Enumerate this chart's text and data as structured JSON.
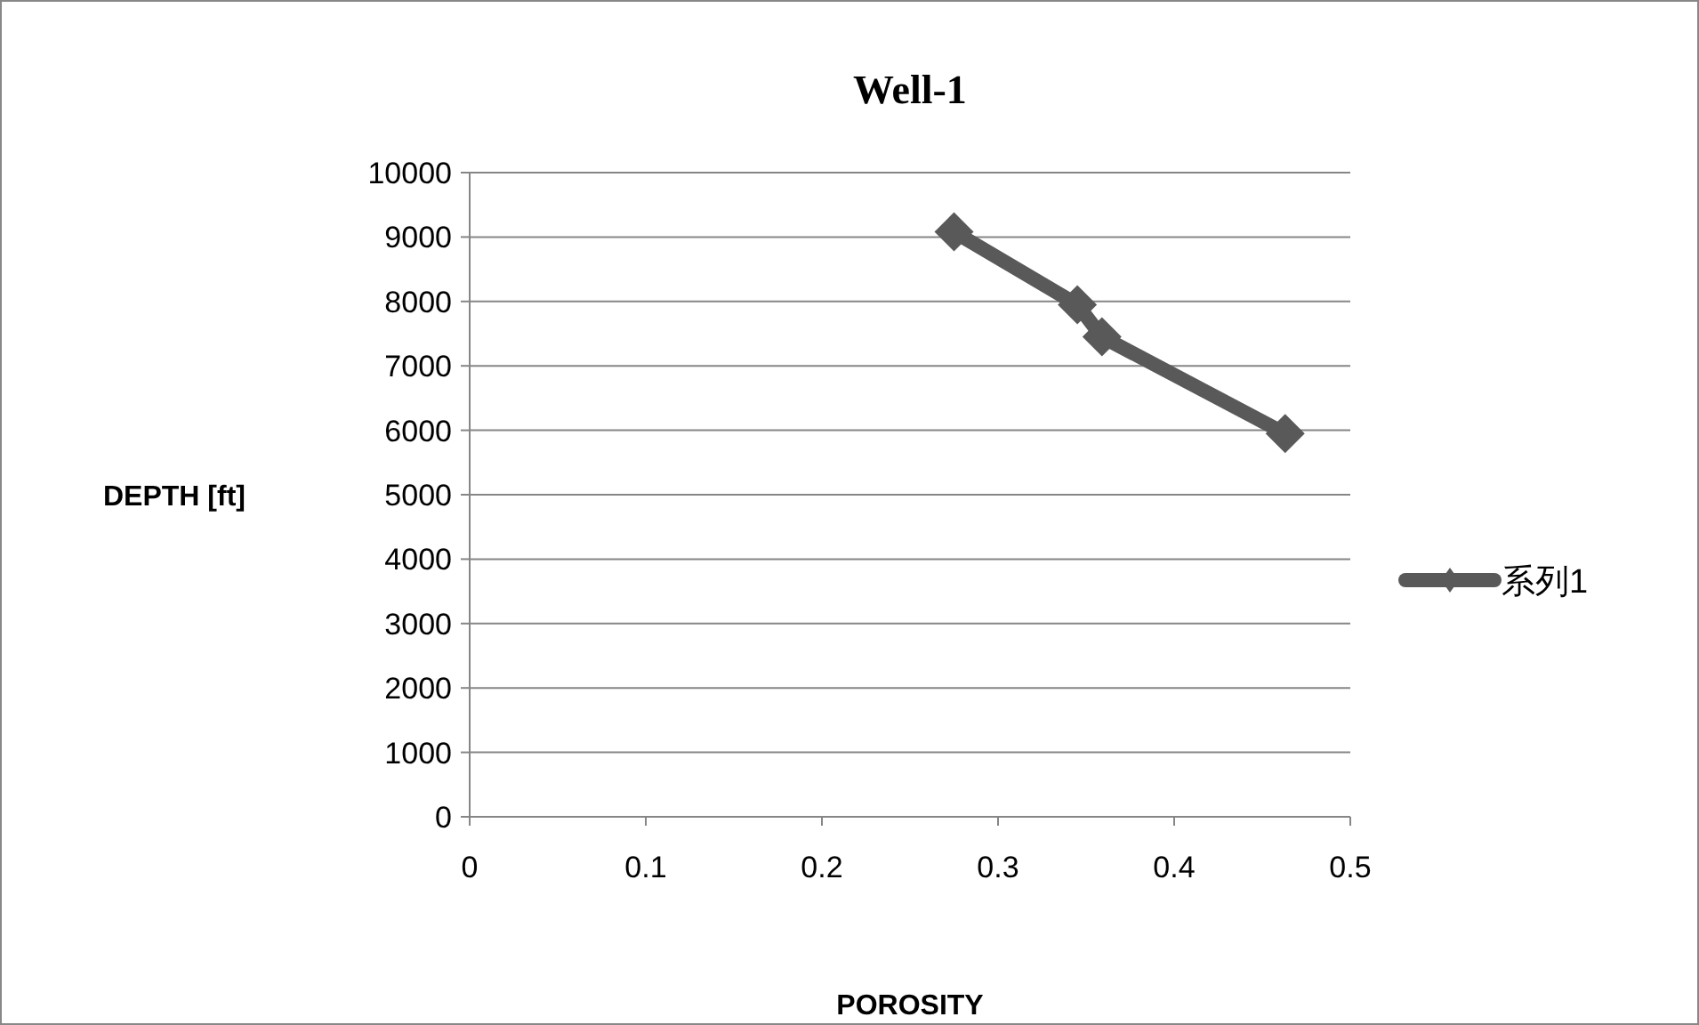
{
  "chart_data": {
    "type": "line",
    "title": "Well-1",
    "xlabel": "POROSITY",
    "ylabel": "DEPTH [ft]",
    "x": [
      0.275,
      0.345,
      0.359,
      0.463
    ],
    "series": [
      {
        "name": "系列1",
        "color": "#595959",
        "values": [
          9080,
          7950,
          7450,
          5950
        ]
      }
    ],
    "xlim": [
      0,
      0.5
    ],
    "xticks": [
      0,
      0.1,
      0.2,
      0.3,
      0.4,
      0.5
    ],
    "ylim": [
      0,
      10000
    ],
    "yticks": [
      0,
      1000,
      2000,
      3000,
      4000,
      5000,
      6000,
      7000,
      8000,
      9000,
      10000
    ],
    "grid": "y",
    "legend": "right",
    "marker": "diamond",
    "line_style": "solid"
  }
}
